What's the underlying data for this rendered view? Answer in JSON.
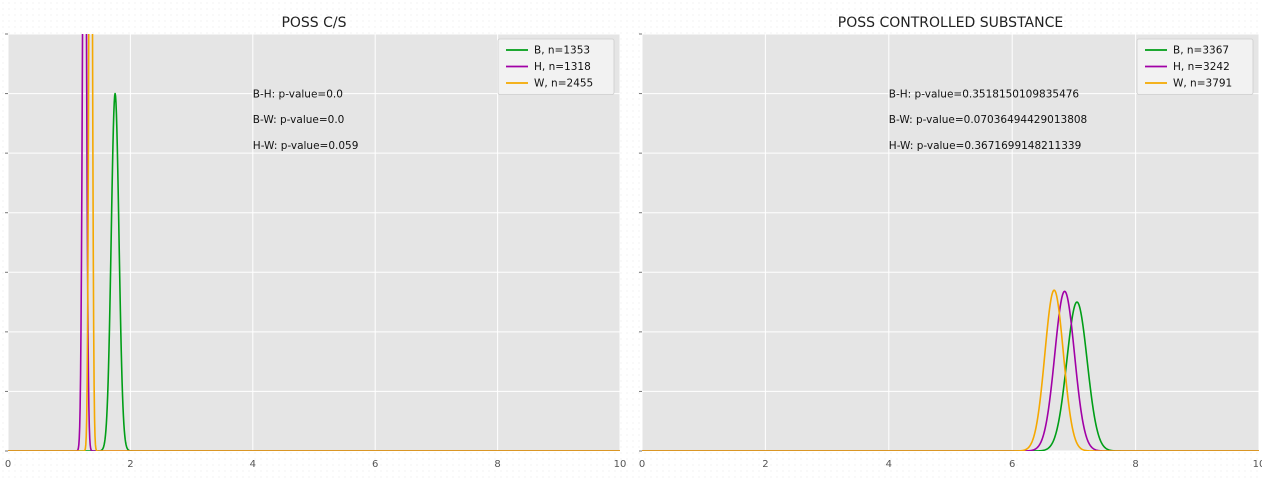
{
  "chart_data": [
    {
      "type": "line",
      "title": "POSS C/S",
      "xlim": [
        0,
        10
      ],
      "ylim": [
        0,
        7
      ],
      "x_ticks": [
        0,
        2,
        4,
        6,
        8,
        10
      ],
      "x_tick_labels": [
        "0",
        "2",
        "4",
        "6",
        "8",
        "10"
      ],
      "y_ticks": [
        0,
        1,
        2,
        3,
        4,
        5,
        6,
        7
      ],
      "grid": true,
      "legend_position": "top-right",
      "series": [
        {
          "name": "B, n=1353",
          "color": "#009e17",
          "mean": 1.75,
          "sd": 0.063,
          "peak": 6.0
        },
        {
          "name": "H, n=1318",
          "color": "#a100a6",
          "mean": 1.25,
          "sd": 0.03,
          "peak": 12.5
        },
        {
          "name": "W, n=2455",
          "color": "#f5a800",
          "mean": 1.35,
          "sd": 0.025,
          "peak": 15.0
        }
      ],
      "annotations": [
        {
          "text": "B-H: p-value=0.0",
          "x": 4.0,
          "y": 6.0
        },
        {
          "text": "B-W: p-value=0.0",
          "x": 4.0,
          "y": 5.57
        },
        {
          "text": "H-W: p-value=0.059",
          "x": 4.0,
          "y": 5.14
        }
      ]
    },
    {
      "type": "line",
      "title": "POSS CONTROLLED SUBSTANCE",
      "xlim": [
        0,
        10
      ],
      "ylim": [
        0,
        7
      ],
      "x_ticks": [
        0,
        2,
        4,
        6,
        8,
        10
      ],
      "x_tick_labels": [
        "0",
        "2",
        "4",
        "6",
        "8",
        "10"
      ],
      "y_ticks": [
        0,
        1,
        2,
        3,
        4,
        5,
        6,
        7
      ],
      "grid": true,
      "legend_position": "top-right",
      "series": [
        {
          "name": "B, n=3367",
          "color": "#009e17",
          "mean": 7.05,
          "sd": 0.165,
          "peak": 2.5
        },
        {
          "name": "H, n=3242",
          "color": "#a100a6",
          "mean": 6.85,
          "sd": 0.16,
          "peak": 2.68
        },
        {
          "name": "W, n=3791",
          "color": "#f5a800",
          "mean": 6.68,
          "sd": 0.15,
          "peak": 2.7
        }
      ],
      "annotations": [
        {
          "text": "B-H: p-value=0.3518150109835476",
          "x": 4.0,
          "y": 6.0
        },
        {
          "text": "B-W: p-value=0.07036494429013808",
          "x": 4.0,
          "y": 5.57
        },
        {
          "text": "H-W: p-value=0.3671699148211339",
          "x": 4.0,
          "y": 5.14
        }
      ]
    }
  ]
}
